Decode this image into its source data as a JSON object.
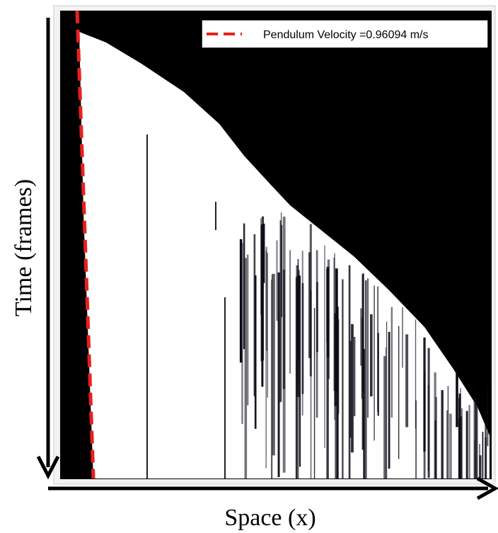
{
  "figure": {
    "legend": "Pendulum Velocity =0.96094 m/s",
    "y_label": "Time  (frames)",
    "x_label": "Space  (x)"
  }
}
